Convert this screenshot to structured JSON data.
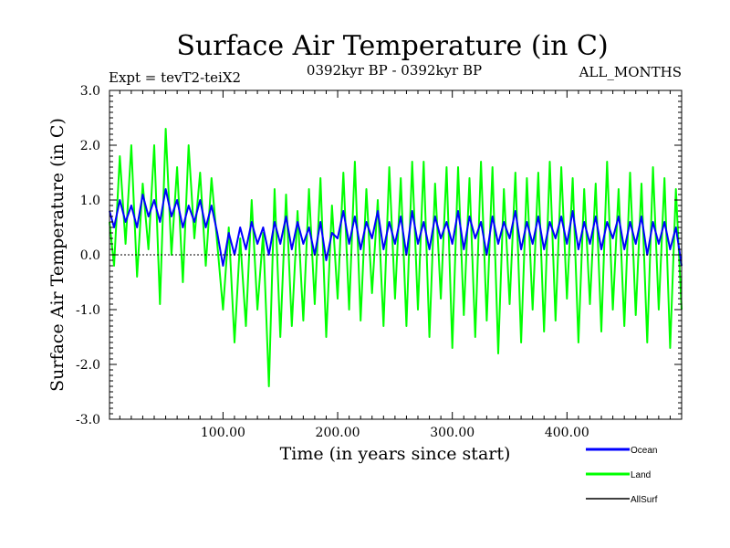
{
  "chart_data": {
    "type": "line",
    "title": "Surface Air Temperature (in C)",
    "subtitle_left": "Expt = tevT2-teiX2",
    "subtitle_center": "0392kyr BP - 0392kyr BP",
    "subtitle_right": "ALL_MONTHS",
    "xlabel": "Time (in years since start)",
    "ylabel": "Surface Air Temperature (in C)",
    "xlim": [
      1,
      500
    ],
    "ylim": [
      -3.0,
      3.0
    ],
    "xticks": [
      100,
      200,
      300,
      400
    ],
    "xtick_labels": [
      "100.00",
      "200.00",
      "300.00",
      "400.00"
    ],
    "yticks": [
      -3.0,
      -2.0,
      -1.0,
      0.0,
      1.0,
      2.0,
      3.0
    ],
    "ytick_labels": [
      "-3.0",
      "-2.0",
      "-1.0",
      "0.0",
      "1.0",
      "2.0",
      "3.0"
    ],
    "zero_line": true,
    "grid": false,
    "legend_position": "bottom-right",
    "series": [
      {
        "name": "Land",
        "color": "#00ff00",
        "x": [
          1,
          5,
          10,
          15,
          20,
          25,
          30,
          35,
          40,
          45,
          50,
          55,
          60,
          65,
          70,
          75,
          80,
          85,
          90,
          95,
          100,
          105,
          110,
          115,
          120,
          125,
          130,
          135,
          140,
          145,
          150,
          155,
          160,
          165,
          170,
          175,
          180,
          185,
          190,
          195,
          200,
          205,
          210,
          215,
          220,
          225,
          230,
          235,
          240,
          245,
          250,
          255,
          260,
          265,
          270,
          275,
          280,
          285,
          290,
          295,
          300,
          305,
          310,
          315,
          320,
          325,
          330,
          335,
          340,
          345,
          350,
          355,
          360,
          365,
          370,
          375,
          380,
          385,
          390,
          395,
          400,
          405,
          410,
          415,
          420,
          425,
          430,
          435,
          440,
          445,
          450,
          455,
          460,
          465,
          470,
          475,
          480,
          485,
          490,
          495,
          500
        ],
        "values": [
          0.6,
          -0.2,
          1.8,
          0.2,
          2.0,
          -0.4,
          1.3,
          0.1,
          2.0,
          -0.9,
          2.3,
          0.0,
          1.6,
          -0.5,
          2.0,
          0.3,
          1.5,
          -0.2,
          1.4,
          0.2,
          -1.0,
          0.5,
          -1.6,
          0.3,
          -1.3,
          1.0,
          -1.0,
          0.4,
          -2.4,
          1.2,
          -1.5,
          1.1,
          -1.3,
          0.8,
          -1.2,
          1.2,
          -0.9,
          1.4,
          -1.5,
          0.9,
          -0.8,
          1.5,
          -1.0,
          1.7,
          -1.2,
          1.2,
          -0.7,
          1.0,
          -1.3,
          1.6,
          -0.8,
          1.4,
          -1.3,
          1.7,
          -1.0,
          1.7,
          -1.5,
          1.3,
          -0.8,
          1.6,
          -1.7,
          1.6,
          -1.1,
          1.4,
          -1.5,
          1.7,
          -1.2,
          1.6,
          -1.8,
          1.2,
          -0.9,
          1.5,
          -1.6,
          1.4,
          -1.0,
          1.5,
          -1.4,
          1.7,
          -1.2,
          1.6,
          -0.8,
          1.4,
          -1.6,
          1.2,
          -0.9,
          1.3,
          -1.4,
          1.7,
          -1.0,
          1.2,
          -1.3,
          1.5,
          -1.1,
          1.3,
          -1.6,
          1.6,
          -1.0,
          1.4,
          -1.7,
          1.2,
          -1.0
        ]
      },
      {
        "name": "Ocean",
        "color": "#0000ff",
        "x": [
          1,
          5,
          10,
          15,
          20,
          25,
          30,
          35,
          40,
          45,
          50,
          55,
          60,
          65,
          70,
          75,
          80,
          85,
          90,
          95,
          100,
          105,
          110,
          115,
          120,
          125,
          130,
          135,
          140,
          145,
          150,
          155,
          160,
          165,
          170,
          175,
          180,
          185,
          190,
          195,
          200,
          205,
          210,
          215,
          220,
          225,
          230,
          235,
          240,
          245,
          250,
          255,
          260,
          265,
          270,
          275,
          280,
          285,
          290,
          295,
          300,
          305,
          310,
          315,
          320,
          325,
          330,
          335,
          340,
          345,
          350,
          355,
          360,
          365,
          370,
          375,
          380,
          385,
          390,
          395,
          400,
          405,
          410,
          415,
          420,
          425,
          430,
          435,
          440,
          445,
          450,
          455,
          460,
          465,
          470,
          475,
          480,
          485,
          490,
          495,
          500
        ],
        "values": [
          0.8,
          0.5,
          1.0,
          0.6,
          0.9,
          0.5,
          1.1,
          0.7,
          1.0,
          0.6,
          1.2,
          0.7,
          1.0,
          0.5,
          0.9,
          0.6,
          1.0,
          0.5,
          0.9,
          0.4,
          -0.2,
          0.4,
          0.0,
          0.5,
          0.1,
          0.6,
          0.2,
          0.5,
          0.0,
          0.6,
          0.2,
          0.7,
          0.1,
          0.6,
          0.2,
          0.5,
          0.0,
          0.6,
          -0.1,
          0.4,
          0.3,
          0.8,
          0.2,
          0.7,
          0.1,
          0.6,
          0.3,
          0.8,
          0.1,
          0.6,
          0.2,
          0.7,
          0.0,
          0.8,
          0.2,
          0.6,
          0.1,
          0.7,
          0.3,
          0.6,
          0.2,
          0.8,
          0.1,
          0.7,
          0.3,
          0.6,
          0.0,
          0.7,
          0.2,
          0.6,
          0.3,
          0.8,
          0.1,
          0.6,
          0.2,
          0.7,
          0.1,
          0.6,
          0.3,
          0.7,
          0.2,
          0.8,
          0.1,
          0.6,
          0.2,
          0.7,
          0.1,
          0.6,
          0.3,
          0.7,
          0.1,
          0.6,
          0.2,
          0.7,
          0.0,
          0.6,
          0.2,
          0.6,
          0.1,
          0.5,
          -0.2
        ]
      },
      {
        "name": "AllSurf",
        "color": "#000000",
        "x": [],
        "values": []
      }
    ]
  }
}
